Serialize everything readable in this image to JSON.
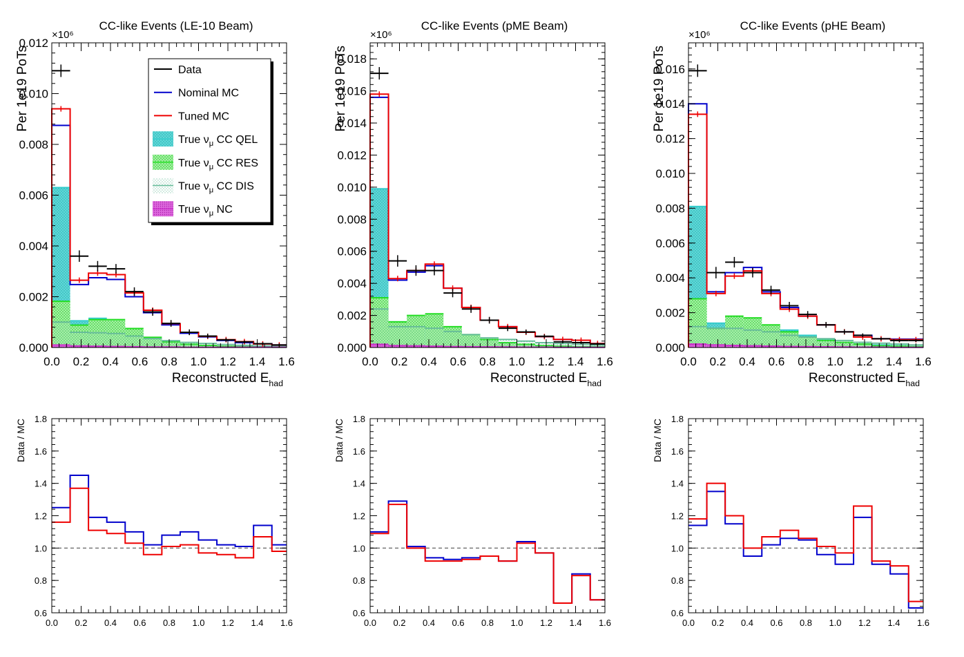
{
  "exponent_label": "×10⁶",
  "colors": {
    "data": "#000000",
    "nominal": "#0000cc",
    "tuned": "#ee0000",
    "qel": "#33cccc",
    "res": "#22dd22",
    "dis": "#66bb99",
    "nc": "#cc33cc",
    "ratio_ref": "#777777"
  },
  "legend": {
    "entries": [
      {
        "key": "data",
        "label": "Data",
        "style": "line"
      },
      {
        "key": "nominal",
        "label": "Nominal MC",
        "style": "line"
      },
      {
        "key": "tuned",
        "label": "Tuned MC",
        "style": "line"
      },
      {
        "key": "qel",
        "label": "True νμ CC QEL",
        "style": "fill"
      },
      {
        "key": "res",
        "label": "True νμ CC RES",
        "style": "fill"
      },
      {
        "key": "dis",
        "label": "True νμ CC DIS",
        "style": "fill"
      },
      {
        "key": "nc",
        "label": "True νμ NC",
        "style": "fill"
      }
    ]
  },
  "chart_data": [
    {
      "type": "histogram",
      "title": "CC-like Events (LE-10 Beam)",
      "xlabel": "Reconstructed E_had",
      "ylabel": "Per 1e19 PoTs",
      "ratio_ylabel": "Data / MC",
      "xlim": [
        0,
        1.6
      ],
      "ylim": [
        0,
        0.012
      ],
      "ratio_ylim": [
        0.6,
        1.8
      ],
      "bin_edges": [
        0,
        0.125,
        0.25,
        0.375,
        0.5,
        0.625,
        0.75,
        0.875,
        1.0,
        1.125,
        1.25,
        1.375,
        1.5,
        1.6
      ],
      "data": [
        0.0109,
        0.0036,
        0.0032,
        0.0031,
        0.0022,
        0.0014,
        0.00095,
        0.0006,
        0.00045,
        0.0003,
        0.00022,
        0.00015,
        0.0001
      ],
      "nominal": [
        0.00875,
        0.00248,
        0.00275,
        0.00268,
        0.002,
        0.00137,
        0.00089,
        0.00056,
        0.00042,
        0.00028,
        0.00019,
        0.00015,
        0.0001
      ],
      "tuned": [
        0.0094,
        0.00265,
        0.00293,
        0.00287,
        0.00215,
        0.00147,
        0.00094,
        0.0006,
        0.00044,
        0.00031,
        0.00023,
        0.00014,
        0.0001
      ],
      "qel": [
        0.0063,
        0.00105,
        0.00115,
        0.0008,
        0.00055,
        0.0003,
        0.00018,
        0.0001,
        6e-05,
        4e-05,
        3e-05,
        2e-05,
        1e-05
      ],
      "res": [
        0.00182,
        0.00088,
        0.0011,
        0.0011,
        0.00075,
        0.0004,
        0.00022,
        0.00013,
        8e-05,
        5e-05,
        3e-05,
        2e-05,
        1e-05
      ],
      "dis": [
        0.001,
        0.0006,
        0.00058,
        0.00055,
        0.00045,
        0.00035,
        0.00027,
        0.0002,
        0.00016,
        0.00012,
        9e-05,
        6e-05,
        4e-05
      ],
      "nc": [
        0.0001,
        6e-05,
        5e-05,
        4e-05,
        3e-05,
        2e-05,
        2e-05,
        1e-05,
        1e-05,
        1e-05,
        1e-05,
        1e-05,
        1e-05
      ],
      "ratio_nominal": [
        1.25,
        1.45,
        1.19,
        1.16,
        1.1,
        1.02,
        1.08,
        1.1,
        1.05,
        1.02,
        1.01,
        1.14,
        1.02
      ],
      "ratio_tuned": [
        1.16,
        1.37,
        1.11,
        1.09,
        1.03,
        0.96,
        1.01,
        1.02,
        0.97,
        0.96,
        0.94,
        1.07,
        0.98
      ],
      "has_legend": true
    },
    {
      "type": "histogram",
      "title": "CC-like Events (pME Beam)",
      "xlabel": "Reconstructed E_had",
      "ylabel": "Per 1e19 PoTs",
      "ratio_ylabel": "Data / MC",
      "xlim": [
        0,
        1.6
      ],
      "ylim": [
        0,
        0.019
      ],
      "ratio_ylim": [
        0.6,
        1.8
      ],
      "bin_edges": [
        0,
        0.125,
        0.25,
        0.375,
        0.5,
        0.625,
        0.75,
        0.875,
        1.0,
        1.125,
        1.25,
        1.375,
        1.5,
        1.6
      ],
      "data": [
        0.0171,
        0.0054,
        0.0048,
        0.0048,
        0.0034,
        0.0024,
        0.0017,
        0.0012,
        0.00097,
        0.0007,
        0.00035,
        0.0003,
        0.00022
      ],
      "nominal": [
        0.0156,
        0.0042,
        0.0047,
        0.0051,
        0.0037,
        0.0025,
        0.0017,
        0.0013,
        0.00095,
        0.00068,
        0.0005,
        0.00045,
        0.00025
      ],
      "tuned": [
        0.0158,
        0.0043,
        0.0048,
        0.0052,
        0.0037,
        0.0025,
        0.0017,
        0.0013,
        0.00095,
        0.00068,
        0.0005,
        0.00045,
        0.00025
      ],
      "qel": [
        0.0099,
        0.0016,
        0.0015,
        0.0013,
        0.0009,
        0.0006,
        0.0004,
        0.00025,
        0.00015,
        0.0001,
        7e-05,
        5e-05,
        3e-05
      ],
      "res": [
        0.0031,
        0.0016,
        0.002,
        0.0021,
        0.0013,
        0.0008,
        0.0005,
        0.0003,
        0.0002,
        0.00012,
        8e-05,
        5e-05,
        3e-05
      ],
      "dis": [
        0.0024,
        0.0013,
        0.0013,
        0.0012,
        0.001,
        0.0008,
        0.0006,
        0.0005,
        0.0004,
        0.0003,
        0.00025,
        0.0002,
        0.00015
      ],
      "nc": [
        0.0002,
        0.00012,
        0.0001,
        8e-05,
        6e-05,
        5e-05,
        4e-05,
        3e-05,
        2e-05,
        2e-05,
        1e-05,
        1e-05,
        1e-05
      ],
      "ratio_nominal": [
        1.1,
        1.29,
        1.01,
        0.94,
        0.93,
        0.94,
        0.95,
        0.92,
        1.04,
        0.97,
        0.66,
        0.84,
        0.68
      ],
      "ratio_tuned": [
        1.09,
        1.27,
        1.0,
        0.92,
        0.92,
        0.93,
        0.95,
        0.92,
        1.03,
        0.97,
        0.66,
        0.83,
        0.68
      ],
      "has_legend": false
    },
    {
      "type": "histogram",
      "title": "CC-like Events (pHE Beam)",
      "xlabel": "Reconstructed E_had",
      "ylabel": "Per 1e19 PoTs",
      "ratio_ylabel": "Data / MC",
      "xlim": [
        0,
        1.6
      ],
      "ylim": [
        0,
        0.0175
      ],
      "ratio_ylim": [
        0.6,
        1.8
      ],
      "bin_edges": [
        0,
        0.125,
        0.25,
        0.375,
        0.5,
        0.625,
        0.75,
        0.875,
        1.0,
        1.125,
        1.25,
        1.375,
        1.5,
        1.6
      ],
      "data": [
        0.0159,
        0.0043,
        0.0049,
        0.0043,
        0.0033,
        0.0024,
        0.0019,
        0.0013,
        0.0009,
        0.0007,
        0.0005,
        0.0004,
        0.0004
      ],
      "nominal": [
        0.014,
        0.0032,
        0.0043,
        0.0046,
        0.0032,
        0.0023,
        0.0018,
        0.0013,
        0.0009,
        0.0007,
        0.0005,
        0.00048,
        0.00048
      ],
      "tuned": [
        0.0134,
        0.0031,
        0.0041,
        0.0044,
        0.0031,
        0.0022,
        0.0018,
        0.0013,
        0.0009,
        0.0006,
        0.0005,
        0.00045,
        0.00045
      ],
      "qel": [
        0.0081,
        0.0014,
        0.0013,
        0.0013,
        0.0012,
        0.001,
        0.0007,
        0.0005,
        0.0003,
        0.0002,
        0.00015,
        0.0001,
        5e-05
      ],
      "res": [
        0.0028,
        0.0011,
        0.0018,
        0.0017,
        0.0013,
        0.0009,
        0.0006,
        0.0004,
        0.0003,
        0.0002,
        0.0001,
        8e-05,
        5e-05
      ],
      "dis": [
        0.0012,
        0.0011,
        0.0011,
        0.001,
        0.0009,
        0.0007,
        0.0006,
        0.0005,
        0.0004,
        0.0003,
        0.00025,
        0.0002,
        0.00015
      ],
      "nc": [
        0.0002,
        0.00015,
        0.00012,
        0.0001,
        8e-05,
        6e-05,
        5e-05,
        4e-05,
        3e-05,
        2e-05,
        2e-05,
        1e-05,
        1e-05
      ],
      "ratio_nominal": [
        1.14,
        1.35,
        1.15,
        0.95,
        1.02,
        1.06,
        1.05,
        0.96,
        0.9,
        1.19,
        0.9,
        0.84,
        0.63
      ],
      "ratio_tuned": [
        1.18,
        1.4,
        1.2,
        1.0,
        1.07,
        1.11,
        1.06,
        1.01,
        0.97,
        1.26,
        0.92,
        0.89,
        0.67
      ],
      "has_legend": false
    }
  ]
}
